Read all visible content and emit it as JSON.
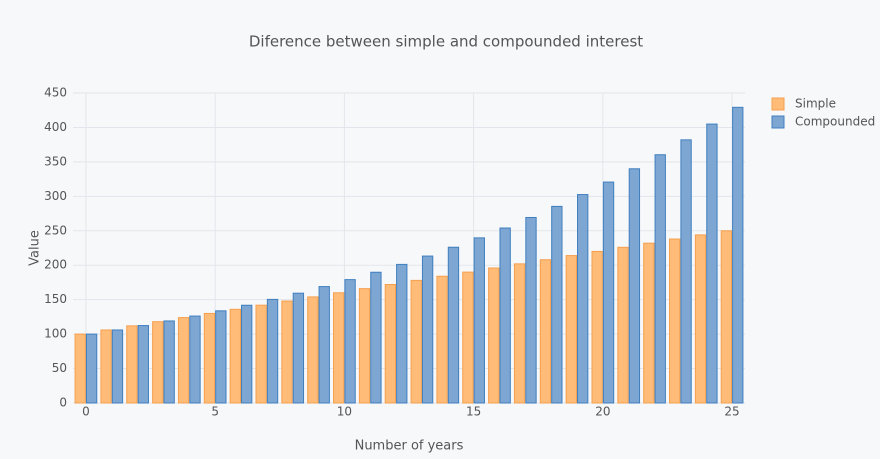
{
  "chart_data": {
    "type": "bar",
    "title": "Diference between simple and compounded interest",
    "x_label": "Number of years",
    "y_label": "Value",
    "x": [
      0,
      1,
      2,
      3,
      4,
      5,
      6,
      7,
      8,
      9,
      10,
      11,
      12,
      13,
      14,
      15,
      16,
      17,
      18,
      19,
      20,
      21,
      22,
      23,
      24,
      25
    ],
    "series": [
      {
        "name": "Simple",
        "color": "#ffbb78",
        "values": [
          100,
          106,
          112,
          118,
          124,
          130,
          136,
          142,
          148,
          154,
          160,
          166,
          172,
          178,
          184,
          190,
          196,
          202,
          208,
          214,
          220,
          226,
          232,
          238,
          244,
          250
        ]
      },
      {
        "name": "Compounded",
        "color": "#7ea6d3",
        "values": [
          100,
          106,
          112.4,
          119.1,
          126.2,
          133.8,
          141.9,
          150.4,
          159.4,
          169.0,
          179.1,
          189.8,
          201.2,
          213.3,
          226.1,
          239.7,
          254.0,
          269.3,
          285.4,
          302.6,
          320.7,
          340.0,
          360.4,
          382.0,
          404.9,
          429.2
        ]
      }
    ],
    "xlim": [
      -0.5,
      25.5
    ],
    "xticks": [
      0,
      5,
      10,
      15,
      20,
      25
    ],
    "ylim": [
      0,
      450
    ],
    "yticks": [
      0,
      50,
      100,
      150,
      200,
      250,
      300,
      350,
      400,
      450
    ],
    "grid": true
  }
}
